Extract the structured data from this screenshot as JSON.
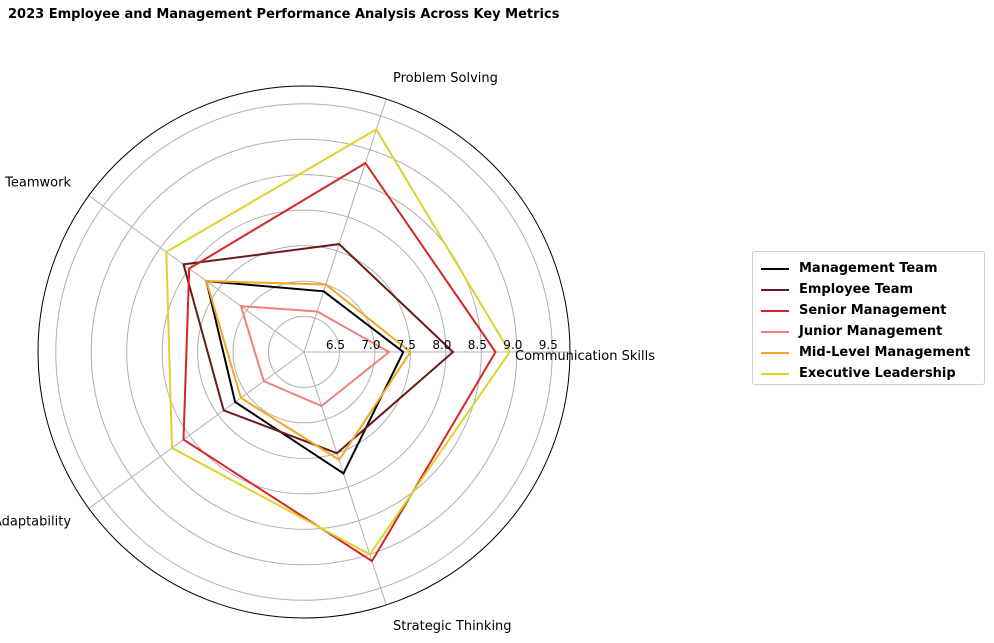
{
  "chart_data": {
    "type": "radar",
    "title": "2023 Employee and Management Performance Analysis Across Key Metrics",
    "categories": [
      "Communication Skills",
      "Problem Solving",
      "Teamwork",
      "Adaptability",
      "Strategic Thinking"
    ],
    "r_ticks": [
      "6.5",
      "7.0",
      "7.5",
      "8.0",
      "8.5",
      "9.0",
      "9.5"
    ],
    "rlim": [
      6.0,
      9.75
    ],
    "grid": true,
    "legend_position": "right",
    "series": [
      {
        "name": "Management Team",
        "color": "#000000",
        "values": [
          7.4,
          6.9,
          7.7,
          7.2,
          7.8
        ]
      },
      {
        "name": "Employee Team",
        "color": "#6b1a1a",
        "values": [
          8.1,
          7.6,
          8.1,
          7.4,
          7.5
        ]
      },
      {
        "name": "Senior Management",
        "color": "#d62728",
        "values": [
          8.7,
          8.8,
          8.0,
          8.1,
          9.1
        ]
      },
      {
        "name": "Junior Management",
        "color": "#f08080",
        "values": [
          7.2,
          6.6,
          7.1,
          6.7,
          6.8
        ]
      },
      {
        "name": "Mid-Level Management",
        "color": "#f5a623",
        "values": [
          7.5,
          7.0,
          7.7,
          7.1,
          7.6
        ]
      },
      {
        "name": "Executive Leadership",
        "color": "#dcd42a",
        "values": [
          8.9,
          9.3,
          8.4,
          8.3,
          9.0
        ]
      }
    ]
  }
}
